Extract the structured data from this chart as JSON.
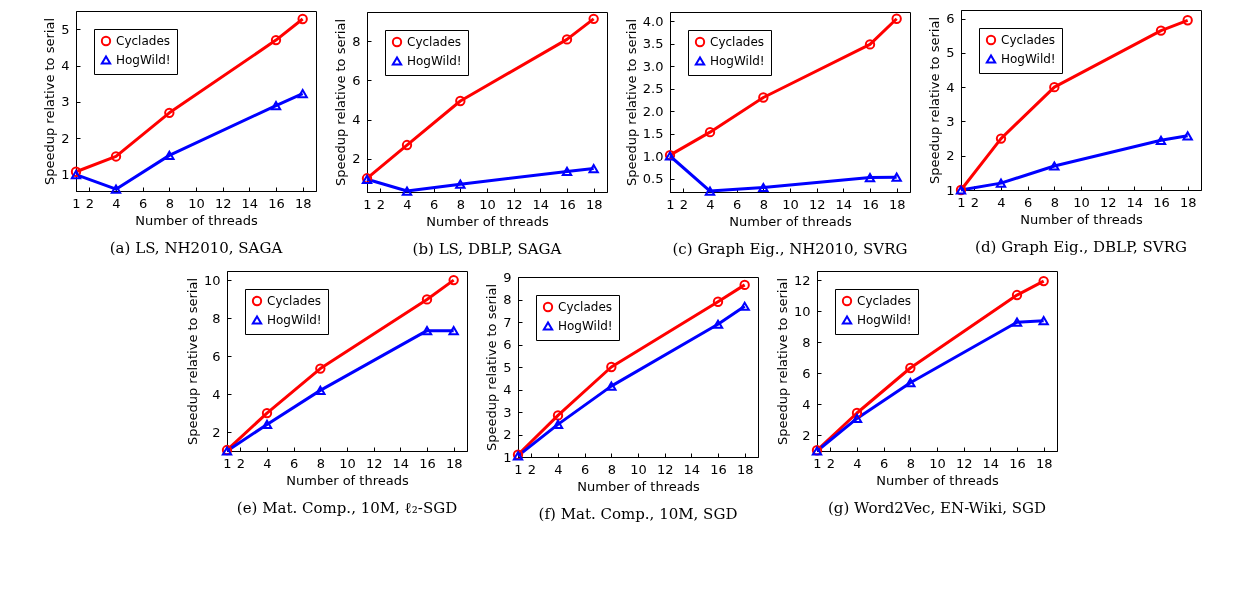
{
  "chart_data": [
    {
      "type": "line",
      "title": "(a)  LS, NH2010, SAGA",
      "xlabel": "Number of threads",
      "ylabel": "Speedup relative to serial",
      "x": [
        1,
        4,
        8,
        16,
        18
      ],
      "xlim": [
        1,
        19
      ],
      "xticks": [
        1,
        2,
        4,
        6,
        8,
        10,
        12,
        14,
        16,
        18
      ],
      "ylim": [
        0.55,
        5.5
      ],
      "yticks": [
        1,
        2,
        3,
        4,
        5
      ],
      "legend": "top left",
      "series": [
        {
          "name": "Cyclades",
          "color": "#ff0000",
          "marker": "circle",
          "values": [
            1.08,
            1.5,
            2.7,
            4.7,
            5.28
          ]
        },
        {
          "name": "HogWild!",
          "color": "#0000ff",
          "marker": "triangle",
          "values": [
            1.0,
            0.6,
            1.53,
            2.9,
            3.23
          ]
        }
      ]
    },
    {
      "type": "line",
      "title": "(b)  LS, DBLP, SAGA",
      "xlabel": "Number of threads",
      "ylabel": "Speedup relative to serial",
      "x": [
        1,
        4,
        8,
        16,
        18
      ],
      "xlim": [
        1,
        19
      ],
      "xticks": [
        1,
        2,
        4,
        6,
        8,
        10,
        12,
        14,
        16,
        18
      ],
      "ylim": [
        0.3,
        9.5
      ],
      "yticks": [
        2,
        4,
        6,
        8
      ],
      "legend": "top left",
      "series": [
        {
          "name": "Cyclades",
          "color": "#ff0000",
          "marker": "circle",
          "values": [
            1.0,
            2.7,
            4.95,
            8.1,
            9.15
          ]
        },
        {
          "name": "HogWild!",
          "color": "#0000ff",
          "marker": "triangle",
          "values": [
            0.95,
            0.35,
            0.7,
            1.35,
            1.5
          ]
        }
      ]
    },
    {
      "type": "line",
      "title": "(c)  Graph Eig., NH2010, SVRG",
      "xlabel": "Number of threads",
      "ylabel": "Speedup relative to serial",
      "x": [
        1,
        4,
        8,
        16,
        18
      ],
      "xlim": [
        1,
        19
      ],
      "xticks": [
        1,
        2,
        4,
        6,
        8,
        10,
        12,
        14,
        16,
        18
      ],
      "ylim": [
        0.2,
        4.2
      ],
      "yticks": [
        {
          "value": 0.5,
          "label": "0.5"
        },
        {
          "value": 1,
          "label": "1.0"
        },
        {
          "value": 1.5,
          "label": "1.5"
        },
        {
          "value": 2,
          "label": "2.0"
        },
        {
          "value": 2.5,
          "label": "2.5"
        },
        {
          "value": 3,
          "label": "3.0"
        },
        {
          "value": 3.5,
          "label": "3.5"
        },
        {
          "value": 4,
          "label": "4.0"
        }
      ],
      "legend": "top left",
      "series": [
        {
          "name": "Cyclades",
          "color": "#ff0000",
          "marker": "circle",
          "values": [
            1.02,
            1.53,
            2.3,
            3.48,
            4.05
          ]
        },
        {
          "name": "HogWild!",
          "color": "#0000ff",
          "marker": "triangle",
          "values": [
            1.0,
            0.22,
            0.3,
            0.52,
            0.53
          ]
        }
      ]
    },
    {
      "type": "line",
      "title": "(d)  Graph Eig., DBLP, SVRG",
      "xlabel": "Number of threads",
      "ylabel": "Speedup relative to serial",
      "x": [
        1,
        4,
        8,
        16,
        18
      ],
      "xlim": [
        1,
        19
      ],
      "xticks": [
        1,
        2,
        4,
        6,
        8,
        10,
        12,
        14,
        16,
        18
      ],
      "ylim": [
        1,
        6.25
      ],
      "yticks": [
        1,
        2,
        3,
        4,
        5,
        6
      ],
      "legend": "top left",
      "series": [
        {
          "name": "Cyclades",
          "color": "#ff0000",
          "marker": "circle",
          "values": [
            1.0,
            2.5,
            4.0,
            5.65,
            5.95
          ]
        },
        {
          "name": "HogWild!",
          "color": "#0000ff",
          "marker": "triangle",
          "values": [
            1.0,
            1.2,
            1.7,
            2.45,
            2.58
          ]
        }
      ]
    },
    {
      "type": "line",
      "title": "(e)  Mat. Comp., 10M, ℓ₂-SGD",
      "xlabel": "Number of threads",
      "ylabel": "Speedup relative to serial",
      "x": [
        1,
        4,
        8,
        16,
        18
      ],
      "xlim": [
        1,
        19
      ],
      "xticks": [
        1,
        2,
        4,
        6,
        8,
        10,
        12,
        14,
        16,
        18
      ],
      "ylim": [
        1,
        10.5
      ],
      "yticks": [
        2,
        4,
        6,
        8,
        10
      ],
      "legend": "top left",
      "series": [
        {
          "name": "Cyclades",
          "color": "#ff0000",
          "marker": "circle",
          "values": [
            1.05,
            3.0,
            5.35,
            9.0,
            10.02
          ]
        },
        {
          "name": "HogWild!",
          "color": "#0000ff",
          "marker": "triangle",
          "values": [
            1.0,
            2.4,
            4.2,
            7.35,
            7.35
          ]
        }
      ]
    },
    {
      "type": "line",
      "title": "(f)  Mat. Comp., 10M, SGD",
      "xlabel": "Number of threads",
      "ylabel": "Speedup relative to serial",
      "x": [
        1,
        4,
        8,
        16,
        18
      ],
      "xlim": [
        1,
        19
      ],
      "xticks": [
        1,
        2,
        4,
        6,
        8,
        10,
        12,
        14,
        16,
        18
      ],
      "ylim": [
        1,
        9
      ],
      "yticks": [
        1,
        2,
        3,
        4,
        5,
        6,
        7,
        8,
        9
      ],
      "legend": "top left",
      "series": [
        {
          "name": "Cyclades",
          "color": "#ff0000",
          "marker": "circle",
          "values": [
            1.1,
            2.85,
            5.0,
            7.9,
            8.65
          ]
        },
        {
          "name": "HogWild!",
          "color": "#0000ff",
          "marker": "triangle",
          "values": [
            1.05,
            2.45,
            4.15,
            6.9,
            7.7
          ]
        }
      ]
    },
    {
      "type": "line",
      "title": "(g)  Word2Vec, EN-Wiki, SGD",
      "xlabel": "Number of threads",
      "ylabel": "Speedup relative to serial",
      "x": [
        1,
        4,
        8,
        16,
        18
      ],
      "xlim": [
        1,
        19
      ],
      "xticks": [
        1,
        2,
        4,
        6,
        8,
        10,
        12,
        14,
        16,
        18
      ],
      "ylim": [
        1,
        12.6
      ],
      "yticks": [
        2,
        4,
        6,
        8,
        10,
        12
      ],
      "legend": "top left",
      "series": [
        {
          "name": "Cyclades",
          "color": "#ff0000",
          "marker": "circle",
          "values": [
            1.05,
            3.45,
            6.35,
            11.05,
            11.95
          ]
        },
        {
          "name": "HogWild!",
          "color": "#0000ff",
          "marker": "triangle",
          "values": [
            1.0,
            3.1,
            5.4,
            9.3,
            9.4
          ]
        }
      ]
    }
  ]
}
